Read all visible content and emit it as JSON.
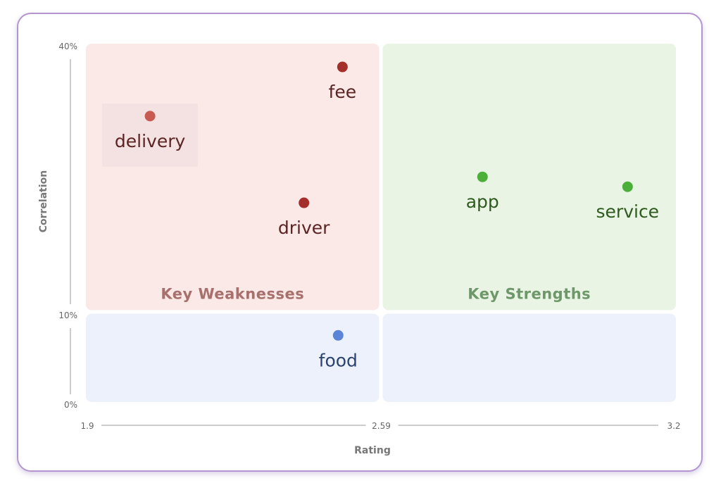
{
  "chart_data": {
    "type": "scatter",
    "title": "",
    "xlabel": "Rating",
    "ylabel": "Correlation",
    "xlim": [
      1.9,
      3.2
    ],
    "x_ticks": [
      {
        "value": 1.9,
        "label": "1.9"
      },
      {
        "value": 2.59,
        "label": "2.59"
      },
      {
        "value": 3.2,
        "label": "3.2"
      }
    ],
    "ylim": [
      0,
      40
    ],
    "y_ticks": [
      {
        "value": 0,
        "label": "0%"
      },
      {
        "value": 10,
        "label": "10%"
      },
      {
        "value": 40,
        "label": "40%"
      }
    ],
    "grid": false,
    "x_split": 2.59,
    "y_split": 10,
    "quadrants": [
      {
        "id": "top-left",
        "label": "Key Weaknesses",
        "fill": "#fbe9e8",
        "label_color": "#a7706c"
      },
      {
        "id": "top-right",
        "label": "Key Strengths",
        "fill": "#e9f4e4",
        "label_color": "#6e9869"
      },
      {
        "id": "bottom-left",
        "label": "",
        "fill": "#edf1fb",
        "label_color": "#8aa0c8"
      },
      {
        "id": "bottom-right",
        "label": "",
        "fill": "#edf1fb",
        "label_color": "#8aa0c8"
      }
    ],
    "points": [
      {
        "label": "fee",
        "x": 2.5,
        "y": 37.4,
        "color": "#a32e2a",
        "text_color": "#5a2424"
      },
      {
        "label": "delivery",
        "x": 2.05,
        "y": 31.9,
        "color": "#c85a52",
        "text_color": "#5a2424",
        "highlight": true
      },
      {
        "label": "driver",
        "x": 2.41,
        "y": 22.2,
        "color": "#a32e2a",
        "text_color": "#5a2424"
      },
      {
        "label": "app",
        "x": 2.8,
        "y": 25.1,
        "color": "#4caf3a",
        "text_color": "#2e5a1e"
      },
      {
        "label": "service",
        "x": 3.1,
        "y": 24.0,
        "color": "#4caf3a",
        "text_color": "#2e5a1e"
      },
      {
        "label": "food",
        "x": 2.49,
        "y": 7.4,
        "color": "#5b84d8",
        "text_color": "#2a4370"
      }
    ]
  }
}
